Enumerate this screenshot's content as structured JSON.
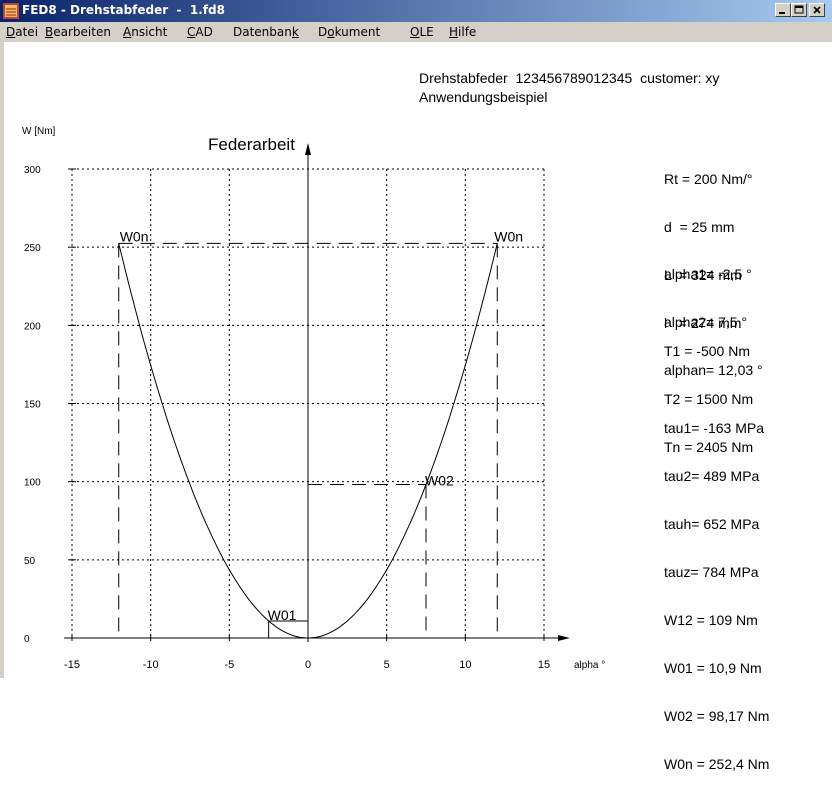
{
  "window": {
    "title": "FED8 - Drehstabfeder  -  1.fd8",
    "controls": [
      "minimize",
      "maximize",
      "close"
    ]
  },
  "menu": [
    {
      "label": "Datei",
      "accel": "D"
    },
    {
      "label": "Bearbeiten",
      "accel": "B"
    },
    {
      "label": "Ansicht",
      "accel": "A"
    },
    {
      "label": "CAD",
      "accel": "C"
    },
    {
      "label": "Datenbank",
      "accel": "k"
    },
    {
      "label": "Dokument",
      "accel": "o"
    },
    {
      "label": "OLE",
      "accel": "O"
    },
    {
      "label": "Hilfe",
      "accel": "H"
    }
  ],
  "header": {
    "line1": "Drehstabfeder  123456789012345  customer: xy",
    "line2": "Anwendungsbeispiel"
  },
  "info_groups": [
    [
      "Rt = 200 Nm/°",
      "d  = 25 mm",
      "L  = 324 mm",
      "l   = 274 mm"
    ],
    [
      "alpha1= -2,5 °",
      "alpha2= 7,5 °",
      "alphan= 12,03 °"
    ],
    [
      "T1 = -500 Nm",
      "T2 = 1500 Nm",
      "Tn = 2405 Nm"
    ],
    [
      "tau1= -163 MPa",
      "tau2= 489 MPa",
      "tauh= 652 MPa",
      "tauz= 784 MPa",
      "W12 = 109 Nm",
      "W01 = 10,9 Nm",
      "W02 = 98,17 Nm",
      "W0n = 252,4 Nm"
    ]
  ],
  "chart_data": {
    "type": "line",
    "title": "Federarbeit",
    "ylabel": "W [Nm]",
    "xlabel": "alpha °",
    "xlim": [
      -15,
      15
    ],
    "ylim": [
      0,
      300
    ],
    "xticks": [
      -15,
      -10,
      -5,
      0,
      5,
      10,
      15
    ],
    "yticks": [
      0,
      50,
      100,
      150,
      200,
      250,
      300
    ],
    "grid": true,
    "curve": {
      "formula": "W = 1.745 * alpha^2",
      "x_range": [
        -12.03,
        12.03
      ]
    },
    "markers": [
      {
        "label": "W0n",
        "alpha": -12.03,
        "W": 252.4
      },
      {
        "label": "W0n",
        "alpha": 12.03,
        "W": 252.4
      },
      {
        "label": "W02",
        "alpha": 7.5,
        "W": 98.17
      },
      {
        "label": "W01",
        "alpha": -2.5,
        "W": 10.9
      }
    ]
  }
}
